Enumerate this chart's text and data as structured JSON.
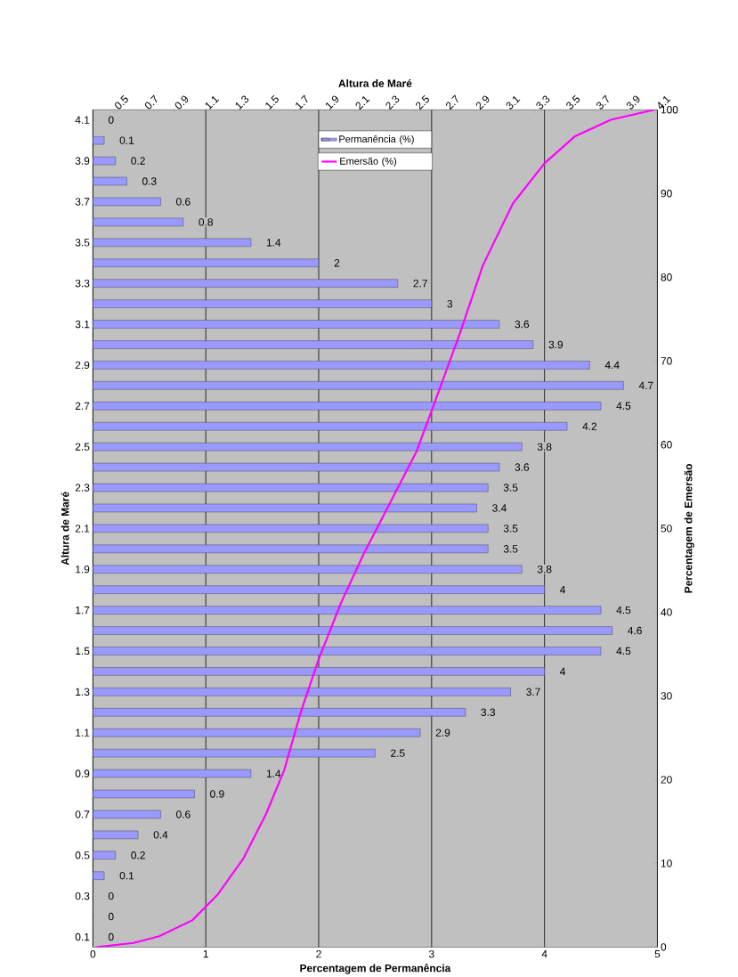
{
  "chart_data": [
    {
      "type": "bar",
      "orientation": "horizontal",
      "xlabel": "Percentagem de Permanência",
      "ylabel": "Altura de Maré",
      "categories": [
        "4.1",
        null,
        "3.9",
        null,
        "3.7",
        null,
        "3.5",
        null,
        "3.3",
        null,
        "3.1",
        null,
        "2.9",
        null,
        "2.7",
        null,
        "2.5",
        null,
        "2.3",
        null,
        "2.1",
        null,
        "1.9",
        null,
        "1.7",
        null,
        "1.5",
        null,
        "1.3",
        null,
        "1.1",
        null,
        "0.9",
        null,
        "0.7",
        null,
        "0.5",
        null,
        "0.3",
        null,
        "0.1"
      ],
      "xlim": [
        0,
        5
      ],
      "xticks": [
        0,
        1,
        2,
        3,
        4,
        5
      ],
      "grid": "x",
      "legend": "top",
      "data_labels": true,
      "series": [
        {
          "name": "Permanência (%)",
          "color": "#9999ff",
          "values": [
            0,
            0.1,
            0.2,
            0.3,
            0.6,
            0.8,
            1.4,
            2,
            2.7,
            3,
            3.6,
            3.9,
            4.4,
            4.7,
            4.5,
            4.2,
            3.8,
            3.6,
            3.5,
            3.4,
            3.5,
            3.5,
            3.8,
            4,
            4.5,
            4.6,
            4.5,
            4,
            3.7,
            3.3,
            2.9,
            2.5,
            1.4,
            0.9,
            0.6,
            0.4,
            0.2,
            0.1,
            0,
            0,
            0
          ]
        }
      ]
    },
    {
      "type": "line",
      "xlabel": "Altura de Maré",
      "ylabel": "Percentagem de Emersão",
      "xlim": [
        0.36,
        4.11
      ],
      "xticks": [
        0.5,
        0.7,
        0.9,
        1.1,
        1.3,
        1.5,
        1.7,
        1.9,
        2.1,
        2.3,
        2.5,
        2.7,
        2.9,
        3.1,
        3.3,
        3.5,
        3.7,
        3.9,
        4.1
      ],
      "ylim": [
        0,
        100
      ],
      "yticks": [
        0,
        10,
        20,
        30,
        40,
        50,
        60,
        70,
        80,
        90,
        100
      ],
      "legend": "top",
      "series": [
        {
          "name": "Emersão (%)",
          "color": "#ff00ff",
          "x": [
            0.38,
            0.63,
            0.8,
            1.02,
            1.19,
            1.36,
            1.51,
            1.63,
            1.74,
            1.86,
            2.01,
            2.16,
            2.33,
            2.51,
            2.65,
            2.8,
            2.95,
            3.15,
            3.36,
            3.56,
            3.8,
            4.09
          ],
          "values": [
            0,
            0.5,
            1.3,
            3.2,
            6.3,
            10.6,
            15.9,
            21.1,
            28,
            34.4,
            41.2,
            47,
            52.9,
            59.2,
            66,
            73.4,
            81.4,
            88.8,
            93.6,
            96.8,
            98.8,
            100
          ]
        }
      ]
    }
  ]
}
